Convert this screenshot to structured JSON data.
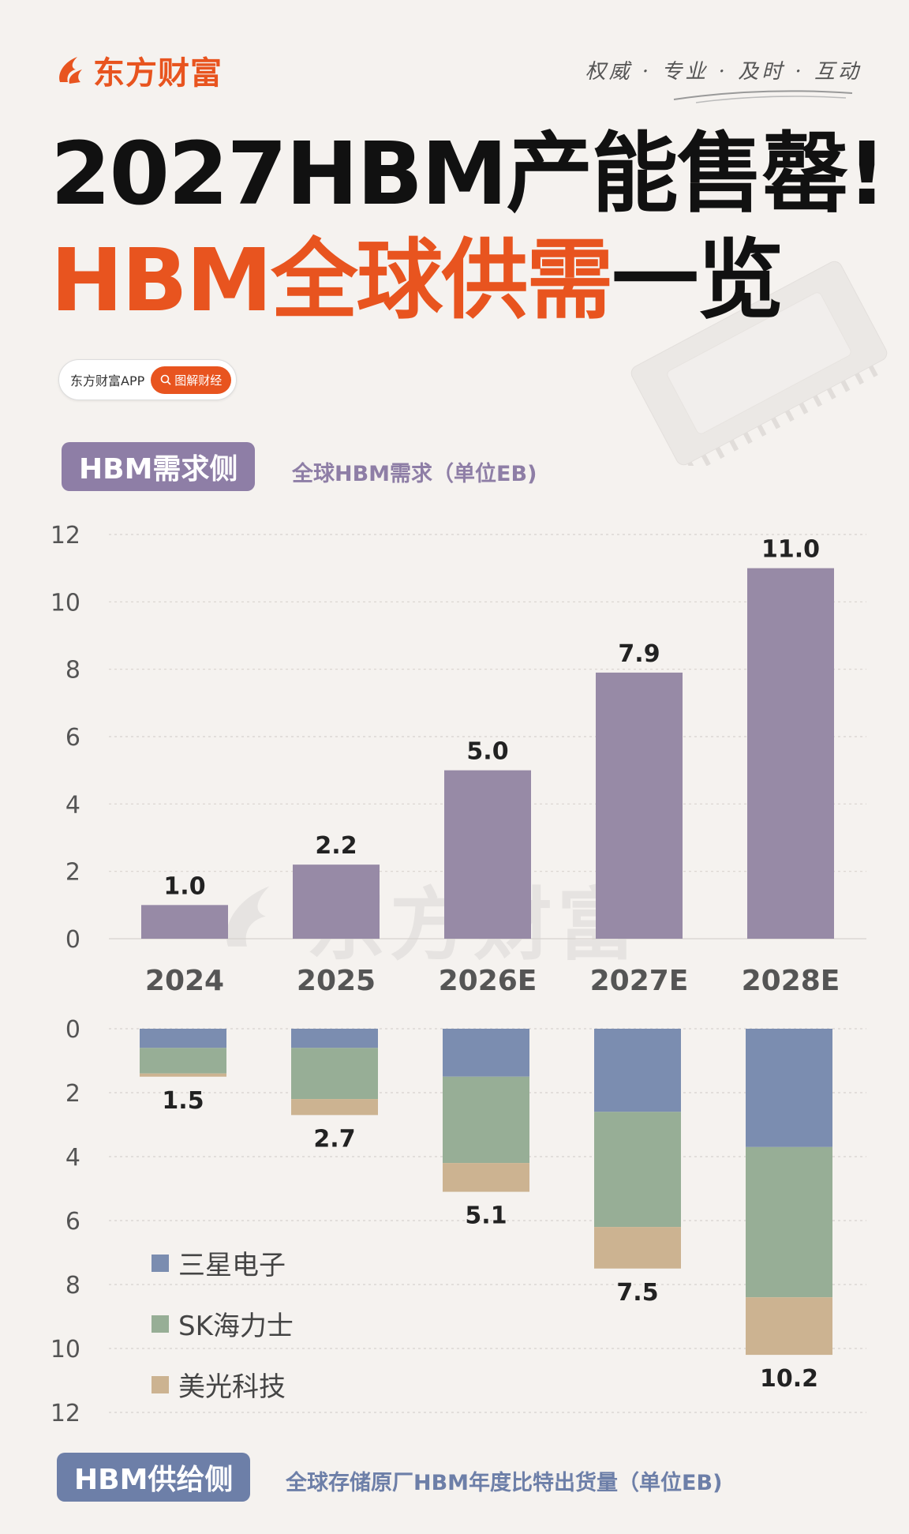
{
  "brand": {
    "logo_text": "东方财富",
    "slogan": "权威 · 专业 · 及时 · 互动",
    "watermark_text": "东方财富"
  },
  "header": {
    "title_line1": "2027HBM产能售罄!",
    "title_line2_highlight": "HBM全球供需",
    "title_line2_rest": "一览"
  },
  "app_badge": {
    "app_name": "东方财富APP",
    "tag": "图解财经"
  },
  "sections": {
    "demand": {
      "label": "HBM需求侧",
      "subtitle": "全球HBM需求（单位EB)"
    },
    "supply": {
      "label": "HBM供给侧",
      "subtitle": "全球存储原厂HBM年度比特出货量（单位EB)"
    }
  },
  "colors": {
    "accent": "#e8541f",
    "demand_bar": "#978aa6",
    "samsung": "#7b8db0",
    "sk_hynix": "#97ae96",
    "micron": "#ccb391",
    "grid": "#d8d3cf"
  },
  "chart_data": [
    {
      "type": "bar",
      "title": "全球HBM需求（单位EB)",
      "categories": [
        "2024",
        "2025",
        "2026E",
        "2027E",
        "2028E"
      ],
      "values": [
        1.0,
        2.2,
        5.0,
        7.9,
        11.0
      ],
      "value_labels": [
        "1.0",
        "2.2",
        "5.0",
        "7.9",
        "11.0"
      ],
      "ylim": [
        0,
        12
      ],
      "yticks": [
        "0",
        "2",
        "4",
        "6",
        "8",
        "10",
        "12"
      ],
      "grid": true
    },
    {
      "type": "bar",
      "stacked": true,
      "inverted_axis": true,
      "title": "全球存储原厂HBM年度比特出货量（单位EB)",
      "categories": [
        "2024",
        "2025",
        "2026E",
        "2027E",
        "2028E"
      ],
      "series": [
        {
          "name": "三星电子",
          "values": [
            0.6,
            0.6,
            1.5,
            2.6,
            3.7
          ]
        },
        {
          "name": "SK海力士",
          "values": [
            0.8,
            1.6,
            2.7,
            3.6,
            4.7
          ]
        },
        {
          "name": "美光科技",
          "values": [
            0.1,
            0.5,
            0.9,
            1.3,
            1.8
          ]
        }
      ],
      "totals": [
        "1.5",
        "2.7",
        "5.1",
        "7.5",
        "10.2"
      ],
      "ylim": [
        0,
        12
      ],
      "yticks": [
        "0",
        "2",
        "4",
        "6",
        "8",
        "10",
        "12"
      ],
      "legend_position": "bottom-left",
      "grid": true
    }
  ]
}
